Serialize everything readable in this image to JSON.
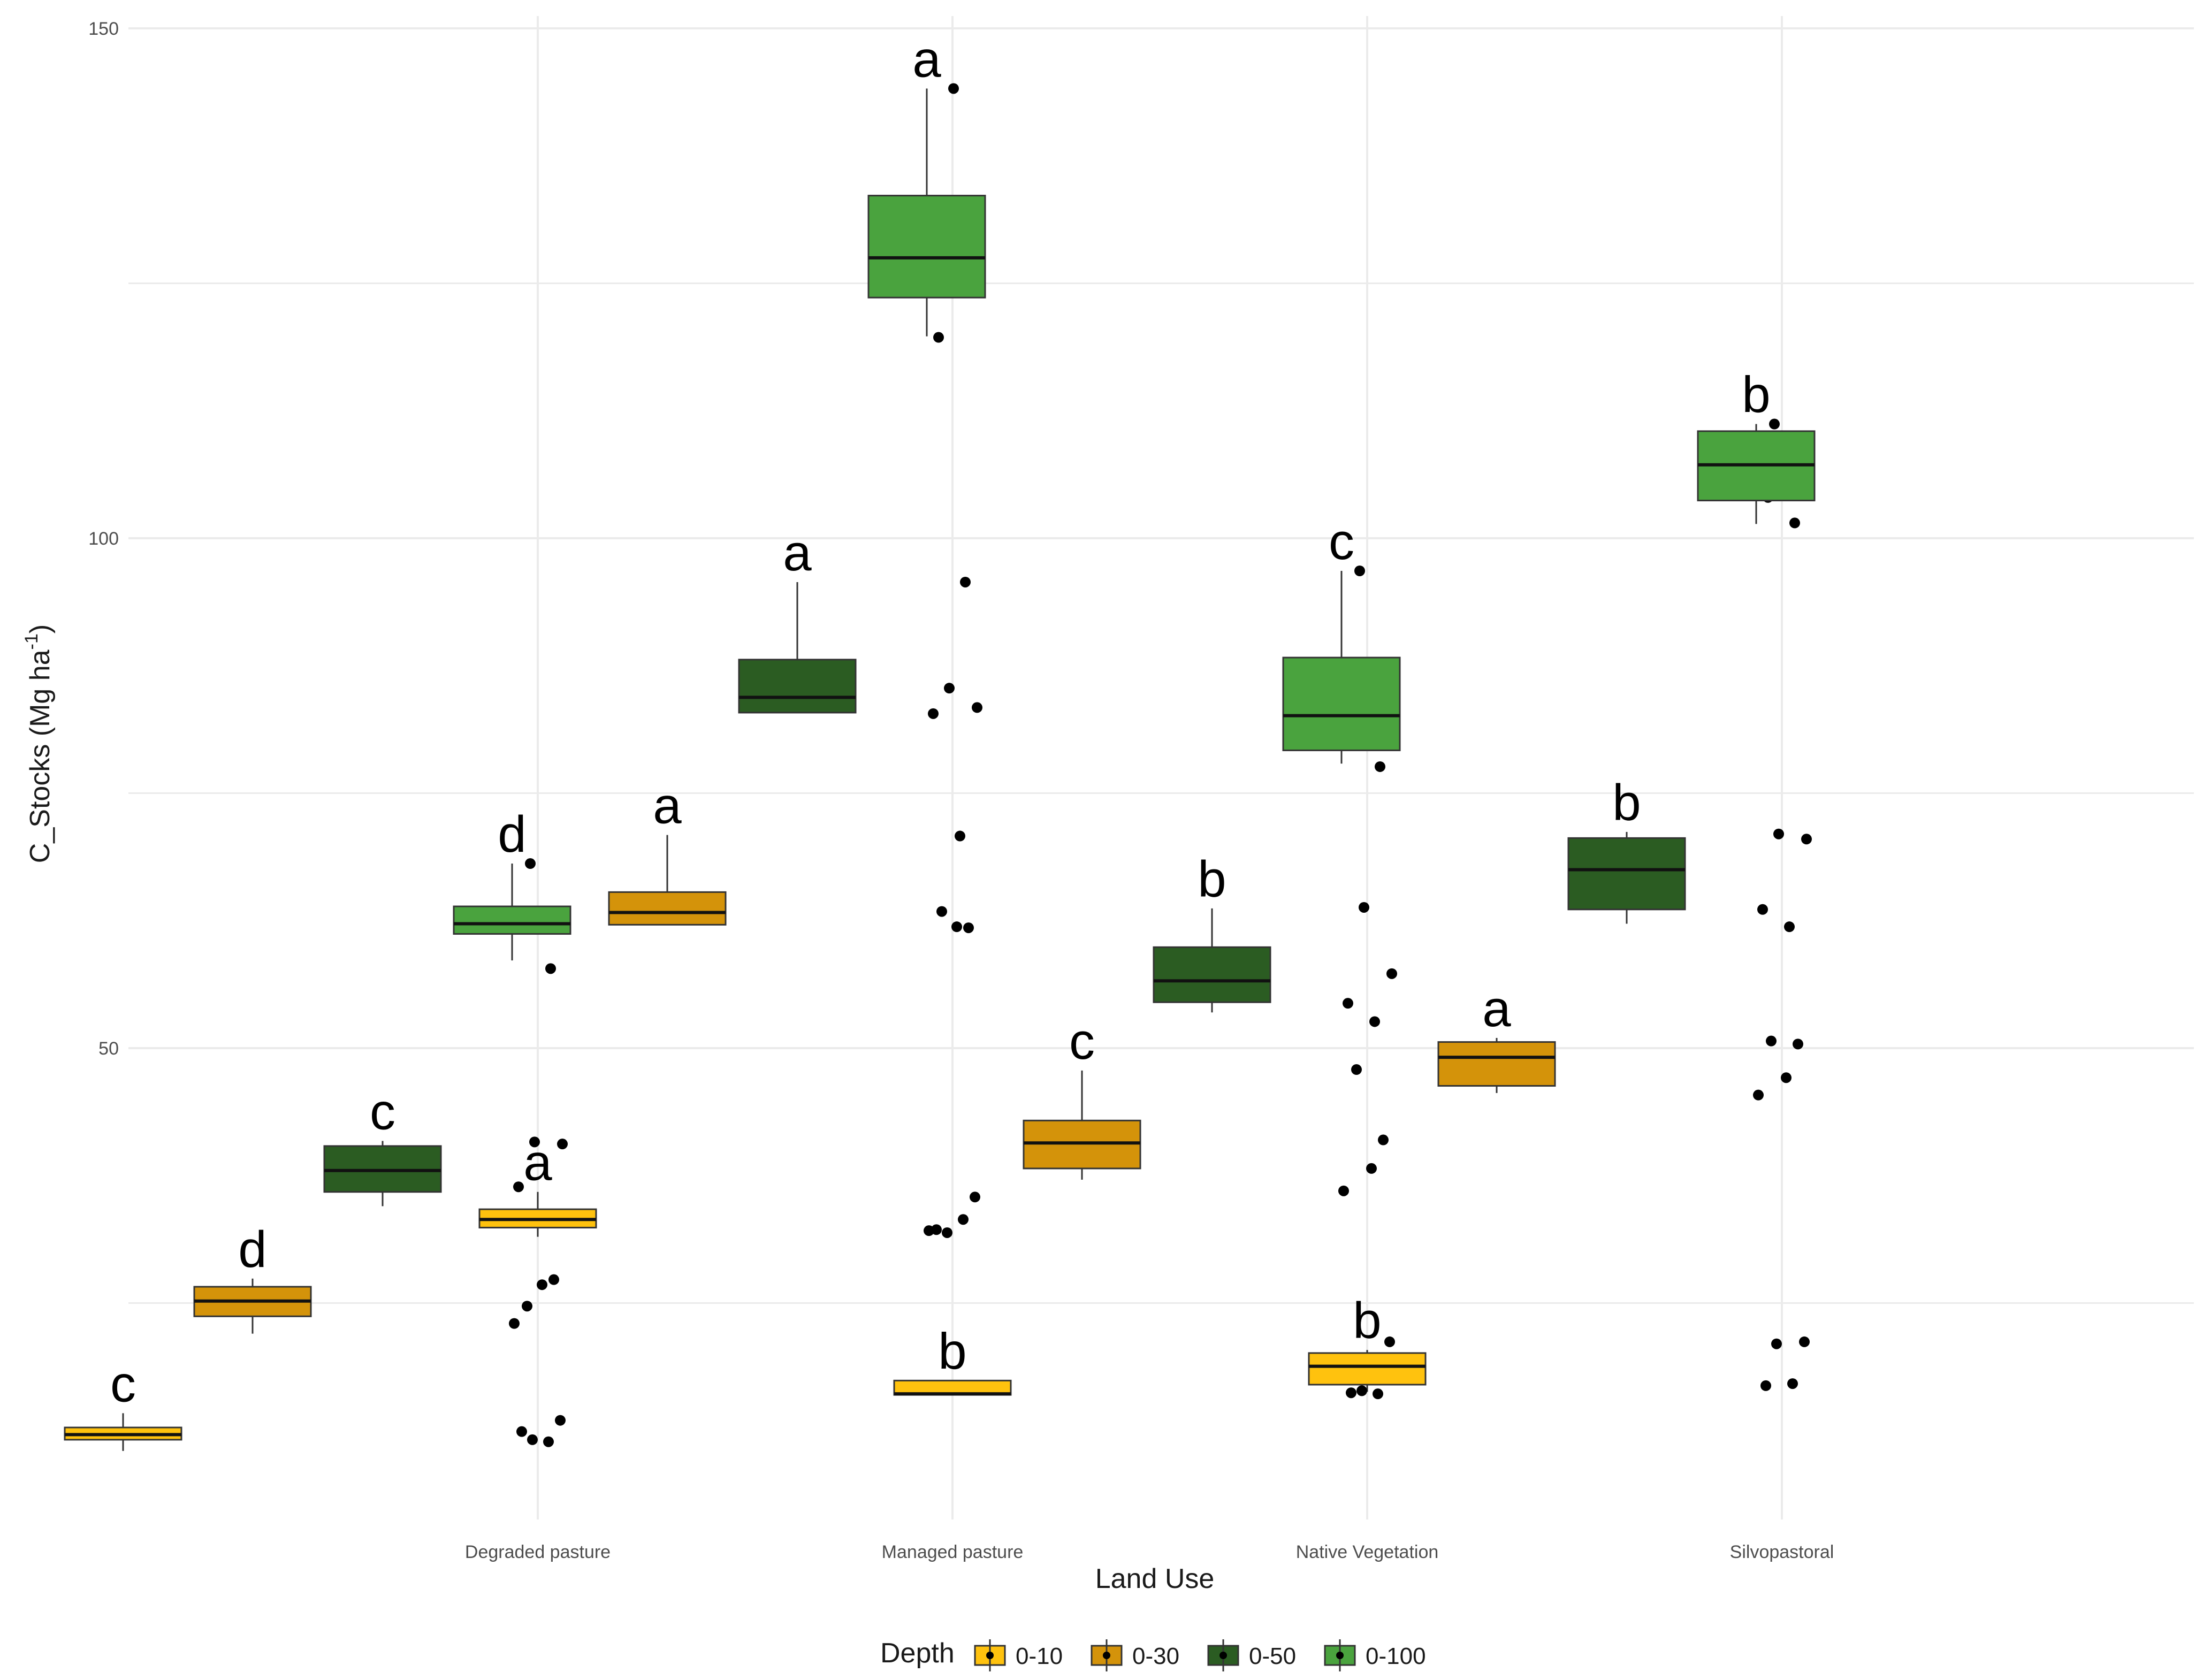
{
  "chart_data": {
    "type": "box",
    "title": "",
    "xlabel": "Land Use",
    "ylabel": "C_Stocks (Mg ha",
    "ylabel_sup": "-1",
    "ylabel_close": ")",
    "ylim": [
      0,
      150
    ],
    "yticks": [
      50,
      100,
      150
    ],
    "categories": [
      "Degraded pasture",
      "Managed pasture",
      "Native Vegetation",
      "Silvopastoral"
    ],
    "legend": {
      "title": "Depth",
      "position": "bottom",
      "entries": [
        {
          "label": "0-10",
          "color": "#FFC20E"
        },
        {
          "label": "0-30",
          "color": "#D4930A"
        },
        {
          "label": "0-50",
          "color": "#2B5C22"
        },
        {
          "label": "0-100",
          "color": "#4AA33E"
        }
      ]
    },
    "boxes": [
      {
        "category": "Degraded pasture",
        "depth": "0-10",
        "min": 10.5,
        "q1": 11.6,
        "median": 12.1,
        "q3": 12.8,
        "max": 14.2,
        "letter": "c"
      },
      {
        "category": "Degraded pasture",
        "depth": "0-30",
        "min": 22.0,
        "q1": 23.7,
        "median": 25.2,
        "q3": 26.6,
        "max": 27.4,
        "letter": "d"
      },
      {
        "category": "Degraded pasture",
        "depth": "0-50",
        "min": 34.5,
        "q1": 35.9,
        "median": 38.0,
        "q3": 40.4,
        "max": 40.9,
        "letter": "c"
      },
      {
        "category": "Degraded pasture",
        "depth": "0-100",
        "min": 58.6,
        "q1": 61.2,
        "median": 62.2,
        "q3": 63.9,
        "max": 68.1,
        "letter": "d"
      },
      {
        "category": "Managed pasture",
        "depth": "0-10",
        "min": 31.5,
        "q1": 32.4,
        "median": 33.2,
        "q3": 34.2,
        "max": 35.9,
        "letter": "a"
      },
      {
        "category": "Managed pasture",
        "depth": "0-30",
        "min": 62.1,
        "q1": 62.1,
        "median": 63.3,
        "q3": 65.3,
        "max": 70.9,
        "letter": "a"
      },
      {
        "category": "Managed pasture",
        "depth": "0-50",
        "min": 82.9,
        "q1": 82.9,
        "median": 84.4,
        "q3": 88.1,
        "max": 95.7,
        "letter": "a"
      },
      {
        "category": "Managed pasture",
        "depth": "0-100",
        "min": 119.8,
        "q1": 123.6,
        "median": 127.5,
        "q3": 133.6,
        "max": 144.1,
        "letter": "a"
      },
      {
        "category": "Native Vegetation",
        "depth": "0-10",
        "min": 16.0,
        "q1": 16.0,
        "median": 16.1,
        "q3": 17.4,
        "max": 17.4,
        "letter": "b"
      },
      {
        "category": "Native Vegetation",
        "depth": "0-30",
        "min": 37.1,
        "q1": 38.2,
        "median": 40.7,
        "q3": 42.9,
        "max": 47.8,
        "letter": "c"
      },
      {
        "category": "Native Vegetation",
        "depth": "0-50",
        "min": 53.5,
        "q1": 54.5,
        "median": 56.6,
        "q3": 59.9,
        "max": 63.7,
        "letter": "b"
      },
      {
        "category": "Native Vegetation",
        "depth": "0-100",
        "min": 77.9,
        "q1": 79.2,
        "median": 82.6,
        "q3": 88.3,
        "max": 96.8,
        "letter": "c"
      },
      {
        "category": "Silvopastoral",
        "depth": "0-10",
        "min": 16.3,
        "q1": 17.0,
        "median": 18.8,
        "q3": 20.1,
        "max": 20.4,
        "letter": "b"
      },
      {
        "category": "Silvopastoral",
        "depth": "0-30",
        "min": 45.6,
        "q1": 46.3,
        "median": 49.1,
        "q3": 50.6,
        "max": 51.0,
        "letter": "a"
      },
      {
        "category": "Silvopastoral",
        "depth": "0-50",
        "min": 62.2,
        "q1": 63.6,
        "median": 67.5,
        "q3": 70.6,
        "max": 71.2,
        "letter": "b"
      },
      {
        "category": "Silvopastoral",
        "depth": "0-100",
        "min": 101.4,
        "q1": 103.7,
        "median": 107.2,
        "q3": 110.5,
        "max": 111.2,
        "letter": "b"
      }
    ],
    "points": [
      {
        "category": "Degraded pasture",
        "values": [
          12.4,
          11.4,
          11.6,
          13.5,
          23.0,
          26.8,
          27.3,
          24.7,
          33.7,
          36.4,
          40.6,
          40.8,
          57.8,
          62.0,
          62.1,
          68.1
        ]
      },
      {
        "category": "Managed pasture",
        "values": [
          32.2,
          33.2,
          31.9,
          35.4,
          32.1,
          61.9,
          61.8,
          63.4,
          70.8,
          82.8,
          83.4,
          85.3,
          95.7,
          119.7,
          124.7,
          130.3,
          144.1
        ]
      },
      {
        "category": "Native Vegetation",
        "values": [
          16.2,
          16.1,
          16.4,
          21.2,
          36.0,
          38.2,
          41.0,
          47.9,
          52.6,
          54.4,
          57.3,
          63.8,
          77.6,
          80.2,
          85.2,
          96.8
        ]
      },
      {
        "category": "Silvopastoral",
        "values": [
          16.9,
          17.1,
          21.0,
          21.2,
          45.4,
          47.1,
          50.4,
          50.7,
          61.9,
          63.6,
          70.5,
          71.0,
          101.5,
          104.0,
          110.0,
          111.2
        ]
      }
    ]
  }
}
